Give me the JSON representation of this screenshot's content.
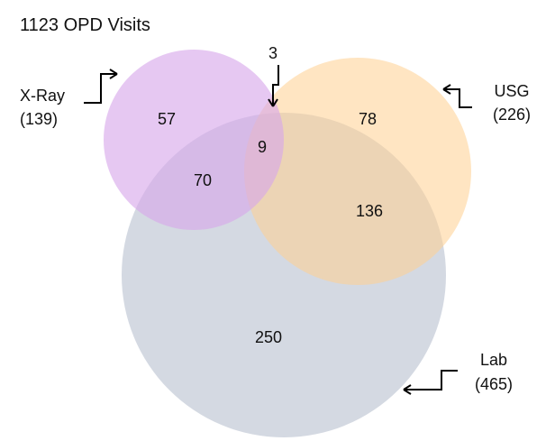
{
  "title": "1123 OPD Visits",
  "sets": {
    "xray": {
      "name": "X-Ray",
      "total": "(139)",
      "color": "#d7a7ea"
    },
    "usg": {
      "name": "USG",
      "total": "(226)",
      "color": "#ffd08f"
    },
    "lab": {
      "name": "Lab",
      "total": "(465)",
      "color": "#aab4c6"
    }
  },
  "regions": {
    "xray_only": "57",
    "usg_only": "78",
    "xray_usg_only": "3",
    "all_three": "9",
    "xray_lab_only": "70",
    "usg_lab_only": "136",
    "lab_only": "250"
  }
}
